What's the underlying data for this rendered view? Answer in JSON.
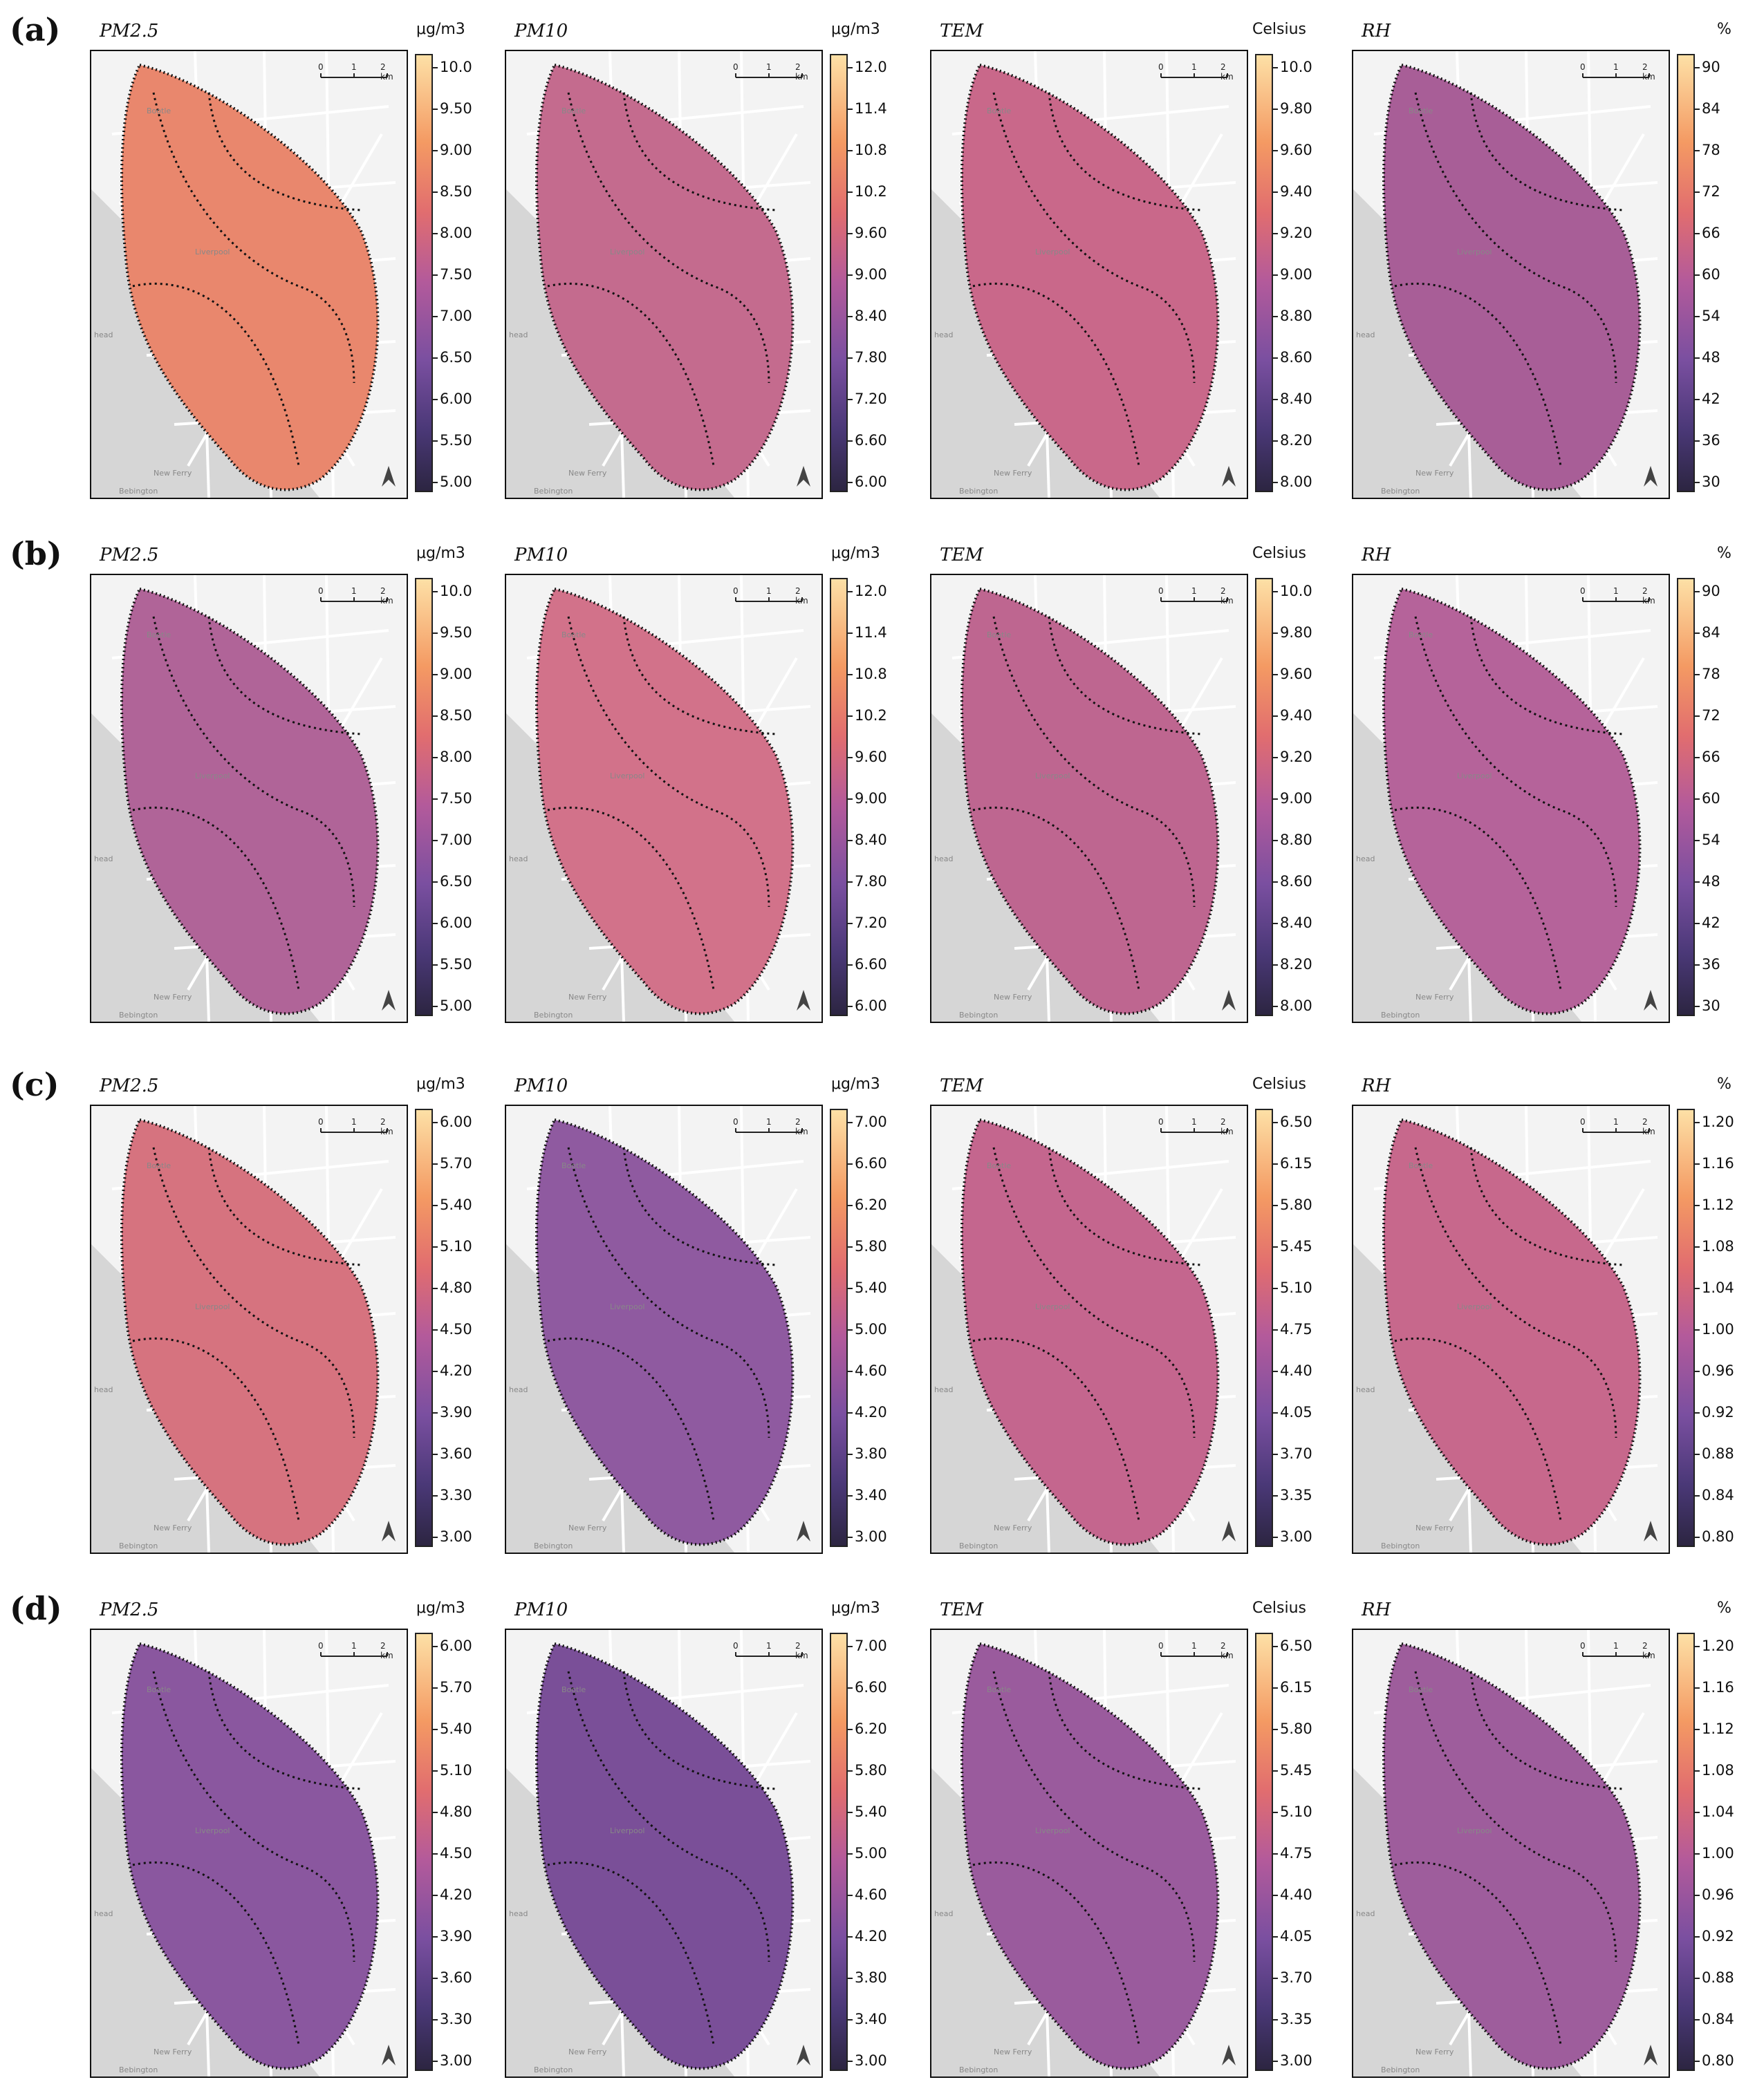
{
  "rows": [
    {
      "label": "(a)",
      "panels": [
        {
          "title": "PM2.5",
          "unit": "μg/m3",
          "ticks": [
            "10.0",
            "9.50",
            "9.00",
            "8.50",
            "8.00",
            "7.50",
            "7.00",
            "6.50",
            "6.00",
            "5.50",
            "5.00"
          ],
          "fill": "#e9876d"
        },
        {
          "title": "PM10",
          "unit": "μg/m3",
          "ticks": [
            "12.0",
            "11.4",
            "10.8",
            "10.2",
            "9.60",
            "9.00",
            "8.40",
            "7.80",
            "7.20",
            "6.60",
            "6.00"
          ],
          "fill": "#c46b8e"
        },
        {
          "title": "TEM",
          "unit": "Celsius",
          "ticks": [
            "10.0",
            "9.80",
            "9.60",
            "9.40",
            "9.20",
            "9.00",
            "8.80",
            "8.60",
            "8.40",
            "8.20",
            "8.00"
          ],
          "fill": "#c9688a"
        },
        {
          "title": "RH",
          "unit": "%",
          "ticks": [
            "90",
            "84",
            "78",
            "72",
            "66",
            "60",
            "54",
            "48",
            "42",
            "36",
            "30"
          ],
          "fill": "#a85e97"
        }
      ]
    },
    {
      "label": "(b)",
      "panels": [
        {
          "title": "PM2.5",
          "unit": "μg/m3",
          "ticks": [
            "10.0",
            "9.50",
            "9.00",
            "8.50",
            "8.00",
            "7.50",
            "7.00",
            "6.50",
            "6.00",
            "5.50",
            "5.00"
          ],
          "fill": "#b06498"
        },
        {
          "title": "PM10",
          "unit": "μg/m3",
          "ticks": [
            "12.0",
            "11.4",
            "10.8",
            "10.2",
            "9.60",
            "9.00",
            "8.40",
            "7.80",
            "7.20",
            "6.60",
            "6.00"
          ],
          "fill": "#d2728a"
        },
        {
          "title": "TEM",
          "unit": "Celsius",
          "ticks": [
            "10.0",
            "9.80",
            "9.60",
            "9.40",
            "9.20",
            "9.00",
            "8.80",
            "8.60",
            "8.40",
            "8.20",
            "8.00"
          ],
          "fill": "#be6690"
        },
        {
          "title": "RH",
          "unit": "%",
          "ticks": [
            "90",
            "84",
            "78",
            "72",
            "66",
            "60",
            "54",
            "48",
            "42",
            "36",
            "30"
          ],
          "fill": "#b5639a"
        }
      ]
    },
    {
      "label": "(c)",
      "panels": [
        {
          "title": "PM2.5",
          "unit": "μg/m3",
          "ticks": [
            "6.00",
            "5.70",
            "5.40",
            "5.10",
            "4.80",
            "4.50",
            "4.20",
            "3.90",
            "3.60",
            "3.30",
            "3.00"
          ],
          "fill": "#d6737f"
        },
        {
          "title": "PM10",
          "unit": "μg/m3",
          "ticks": [
            "7.00",
            "6.60",
            "6.20",
            "5.80",
            "5.40",
            "5.00",
            "4.60",
            "4.20",
            "3.80",
            "3.40",
            "3.00"
          ],
          "fill": "#8f5aa0"
        },
        {
          "title": "TEM",
          "unit": "Celsius",
          "ticks": [
            "6.50",
            "6.15",
            "5.80",
            "5.45",
            "5.10",
            "4.75",
            "4.40",
            "4.05",
            "3.70",
            "3.35",
            "3.00"
          ],
          "fill": "#c4668e"
        },
        {
          "title": "RH",
          "unit": "%",
          "ticks": [
            "1.20",
            "1.16",
            "1.12",
            "1.08",
            "1.04",
            "1.00",
            "0.96",
            "0.92",
            "0.88",
            "0.84",
            "0.80"
          ],
          "fill": "#c7688c"
        }
      ]
    },
    {
      "label": "(d)",
      "panels": [
        {
          "title": "PM2.5",
          "unit": "μg/m3",
          "ticks": [
            "6.00",
            "5.70",
            "5.40",
            "5.10",
            "4.80",
            "4.50",
            "4.20",
            "3.90",
            "3.60",
            "3.30",
            "3.00"
          ],
          "fill": "#8a579f"
        },
        {
          "title": "PM10",
          "unit": "μg/m3",
          "ticks": [
            "7.00",
            "6.60",
            "6.20",
            "5.80",
            "5.40",
            "5.00",
            "4.60",
            "4.20",
            "3.80",
            "3.40",
            "3.00"
          ],
          "fill": "#7a4f98"
        },
        {
          "title": "TEM",
          "unit": "Celsius",
          "ticks": [
            "6.50",
            "6.15",
            "5.80",
            "5.45",
            "5.10",
            "4.75",
            "4.40",
            "4.05",
            "3.70",
            "3.35",
            "3.00"
          ],
          "fill": "#9a5b9d"
        },
        {
          "title": "RH",
          "unit": "%",
          "ticks": [
            "1.20",
            "1.16",
            "1.12",
            "1.08",
            "1.04",
            "1.00",
            "0.96",
            "0.92",
            "0.88",
            "0.84",
            "0.80"
          ],
          "fill": "#9e5d9c"
        }
      ]
    }
  ],
  "places": [
    "Bootle",
    "Liverpool",
    "New Ferry",
    "Bebington",
    "head"
  ],
  "scalebar": {
    "labels": [
      "0",
      "1",
      "2 km"
    ]
  },
  "north_arrow_icon": "north-arrow-icon"
}
